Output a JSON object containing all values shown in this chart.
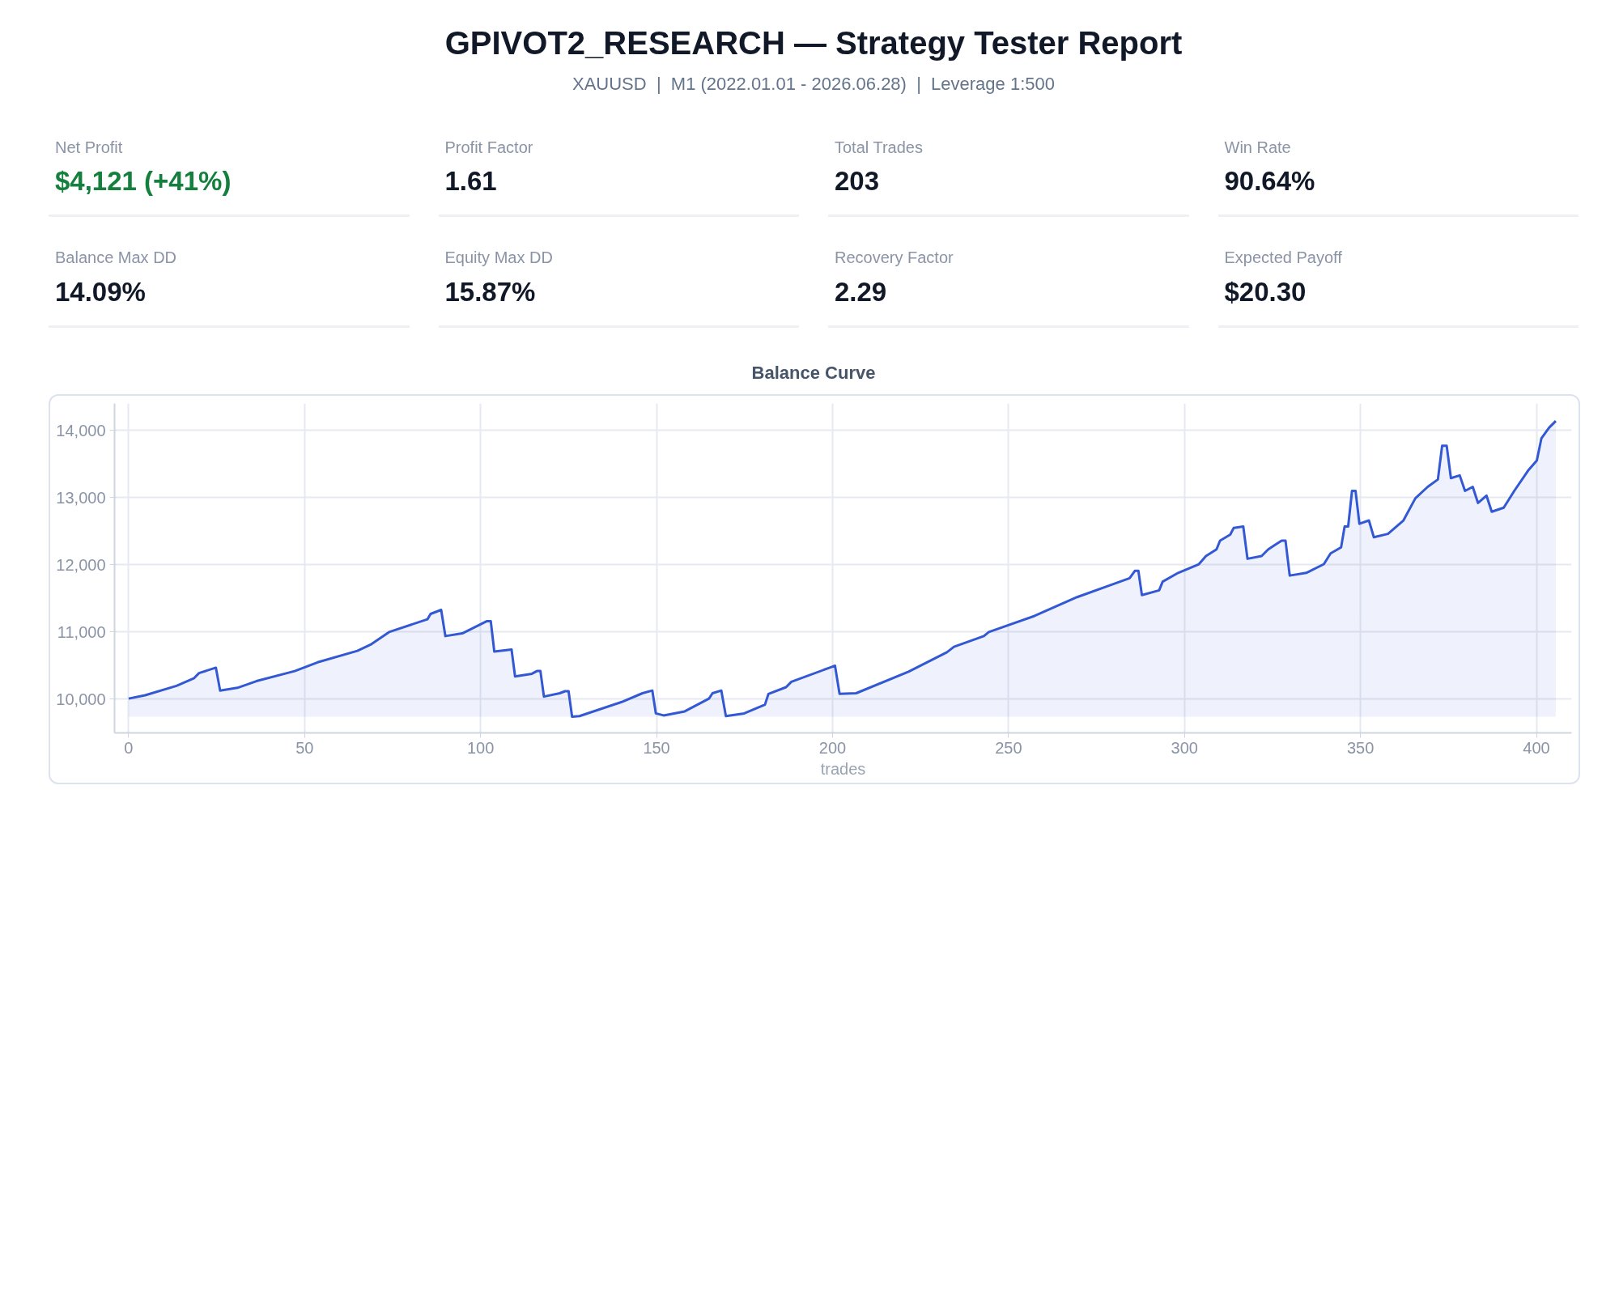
{
  "chart_data": [
    {
      "type": "other",
      "title": "GPIVOT2_RESEARCH — Strategy Tester Report",
      "subtitle": "XAUUSD  |  M1 (2022.01.01 - 2026.06.28)  |  Leverage 1:500",
      "annotations": [
        "Net Profit",
        "$4,121 (+41%)",
        "Profit Factor",
        "1.61",
        "Total Trades",
        "203",
        "Win Rate",
        "90.64%",
        "Balance Max DD",
        "14.09%",
        "Equity Max DD",
        "15.87%",
        "Recovery Factor",
        "2.29",
        "Expected Payoff",
        "$20.30"
      ],
      "colors": [
        "#8a94a6",
        "#15803d",
        "#8a94a6",
        "#111827",
        "#8a94a6",
        "#111827",
        "#8a94a6",
        "#111827",
        "#8a94a6",
        "#111827",
        "#8a94a6",
        "#111827",
        "#8a94a6",
        "#111827",
        "#8a94a6",
        "#111827"
      ]
    },
    {
      "type": "area",
      "title": "Balance Curve",
      "xlabel": "trades",
      "color": "#3358d4",
      "x": [
        0,
        4.7,
        13.6,
        18.5,
        20,
        24.8,
        26,
        30.9,
        36.3,
        47.2,
        53.7,
        65,
        69,
        74,
        84.9,
        85.8,
        88.8,
        90,
        94.8,
        101.7,
        102.9,
        103.9,
        108.8,
        109.8,
        114.6,
        116,
        117,
        118,
        122.5,
        124,
        125,
        126,
        128.1,
        140.1,
        146,
        148.8,
        149.8,
        152,
        158,
        164.9,
        165.9,
        168.4,
        169.7,
        174.9,
        180.8,
        181.8,
        186.8,
        188.3,
        199.7,
        200.7,
        202,
        206.7,
        221.6,
        232.5,
        234.5,
        243,
        244.4,
        257.4,
        269.5,
        278.5,
        284.4,
        285.9,
        286.9,
        287.9,
        292.8,
        293.8,
        298.2,
        304.1,
        306.1,
        309.1,
        310.1,
        313,
        314,
        316.7,
        317.9,
        321.9,
        323.8,
        325.8,
        327.6,
        328.7,
        329.9,
        334.6,
        339.6,
        341.5,
        344.5,
        345.5,
        346.5,
        347.6,
        348.6,
        349.7,
        352.4,
        353.8,
        357.8,
        362.2,
        365.6,
        369.1,
        372,
        373.2,
        374.5,
        375.7,
        378.2,
        379.7,
        381.9,
        383.4,
        385.8,
        387.3,
        390.7,
        393.7,
        397.6,
        400.1,
        401.4,
        403.6,
        405.5
      ],
      "values": [
        10010,
        10060,
        10200,
        10310,
        10390,
        10470,
        10130,
        10170,
        10270,
        10420,
        10550,
        10720,
        10820,
        11000,
        11190,
        11270,
        11330,
        10940,
        10980,
        11160,
        11160,
        10710,
        10740,
        10340,
        10380,
        10420,
        10420,
        10040,
        10090,
        10120,
        10120,
        9740,
        9750,
        9960,
        10090,
        10130,
        9790,
        9760,
        9820,
        10010,
        10090,
        10130,
        9750,
        9790,
        9920,
        10080,
        10180,
        10260,
        10480,
        10500,
        10080,
        10090,
        10410,
        10700,
        10780,
        10940,
        11000,
        11240,
        11520,
        11690,
        11800,
        11910,
        11910,
        11550,
        11620,
        11750,
        11880,
        12010,
        12130,
        12230,
        12360,
        12450,
        12550,
        12570,
        12090,
        12130,
        12230,
        12300,
        12360,
        12360,
        11840,
        11880,
        12010,
        12170,
        12260,
        12570,
        12570,
        13100,
        13100,
        12610,
        12660,
        12410,
        12460,
        12660,
        12990,
        13160,
        13270,
        13770,
        13770,
        13290,
        13330,
        13100,
        13160,
        12920,
        13030,
        12790,
        12850,
        13100,
        13400,
        13550,
        13880,
        14040,
        14140
      ],
      "xlim": [
        -4,
        410
      ],
      "ylim": [
        9500,
        14400
      ],
      "xticks": [
        0,
        50,
        100,
        150,
        200,
        250,
        300,
        350,
        400
      ],
      "yticks": [
        {
          "value": 10000,
          "label": "10,000"
        },
        {
          "value": 11000,
          "label": "11,000"
        },
        {
          "value": 12000,
          "label": "12,000"
        },
        {
          "value": 13000,
          "label": "13,000"
        },
        {
          "value": 14000,
          "label": "14,000"
        }
      ],
      "grid": true
    }
  ]
}
